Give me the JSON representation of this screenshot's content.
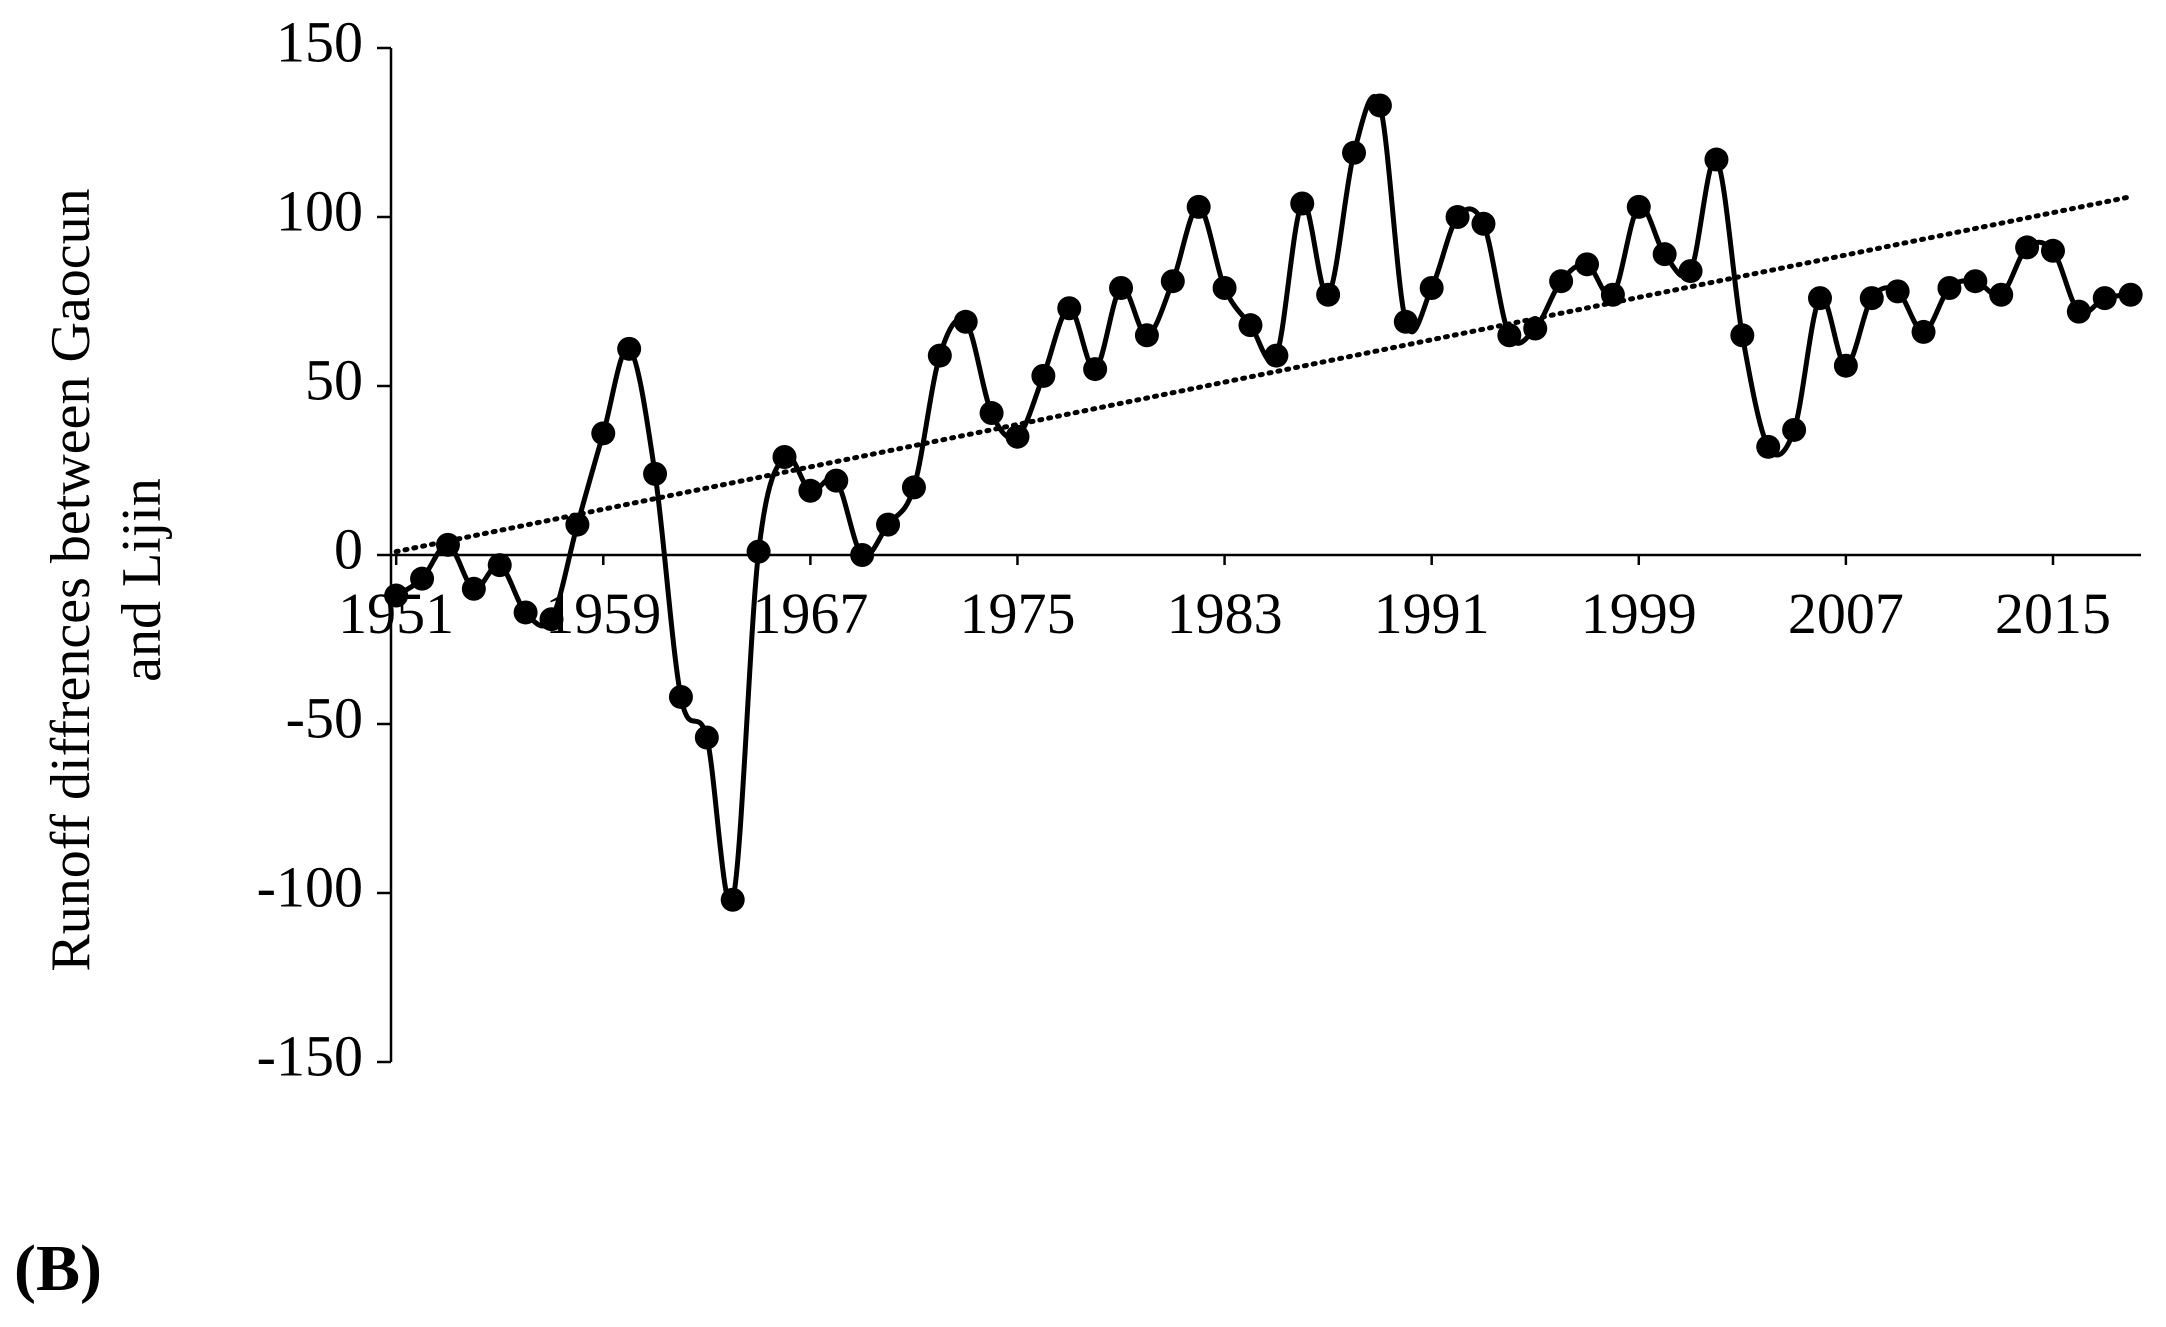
{
  "chart_data": {
    "type": "line",
    "panel_label": "(B)",
    "ylabel": [
      "Runoff diffrences between Gaocun",
      "and Lijin"
    ],
    "x": [
      1951,
      1952,
      1953,
      1954,
      1955,
      1956,
      1957,
      1958,
      1959,
      1960,
      1961,
      1962,
      1963,
      1964,
      1965,
      1966,
      1967,
      1968,
      1969,
      1970,
      1971,
      1972,
      1973,
      1974,
      1975,
      1976,
      1977,
      1978,
      1979,
      1980,
      1981,
      1982,
      1983,
      1984,
      1985,
      1986,
      1987,
      1988,
      1989,
      1990,
      1991,
      1992,
      1993,
      1994,
      1995,
      1996,
      1997,
      1998,
      1999,
      2000,
      2001,
      2002,
      2003,
      2004,
      2005,
      2006,
      2007,
      2008,
      2009,
      2010,
      2011,
      2012,
      2013,
      2014,
      2015,
      2016,
      2017,
      2018
    ],
    "series": [
      {
        "color": "#000000",
        "values": [
          -12,
          -7,
          3,
          -10,
          -3,
          -17,
          -19,
          9,
          36,
          61,
          24,
          -42,
          -54,
          -102,
          1,
          29,
          19,
          22,
          0,
          9,
          20,
          59,
          69,
          42,
          35,
          53,
          73,
          55,
          79,
          65,
          81,
          103,
          79,
          68,
          59,
          104,
          77,
          119,
          133,
          69,
          79,
          100,
          98,
          65,
          67,
          81,
          86,
          77,
          103,
          89,
          84,
          117,
          65,
          32,
          37,
          76,
          56,
          76,
          78,
          66,
          79,
          81,
          77,
          91,
          90,
          72,
          76,
          77
        ]
      }
    ],
    "trendline": {
      "x": [
        1951,
        2018
      ],
      "values": [
        1,
        106
      ],
      "color": "#000000"
    },
    "xlim": [
      1950.8,
      2018.4
    ],
    "xticks": [
      1951,
      1959,
      1967,
      1975,
      1983,
      1991,
      1999,
      2007,
      2015
    ],
    "ylim": [
      -150,
      150
    ],
    "yticks": [
      -150,
      -100,
      -50,
      0,
      50,
      100,
      150
    ]
  }
}
